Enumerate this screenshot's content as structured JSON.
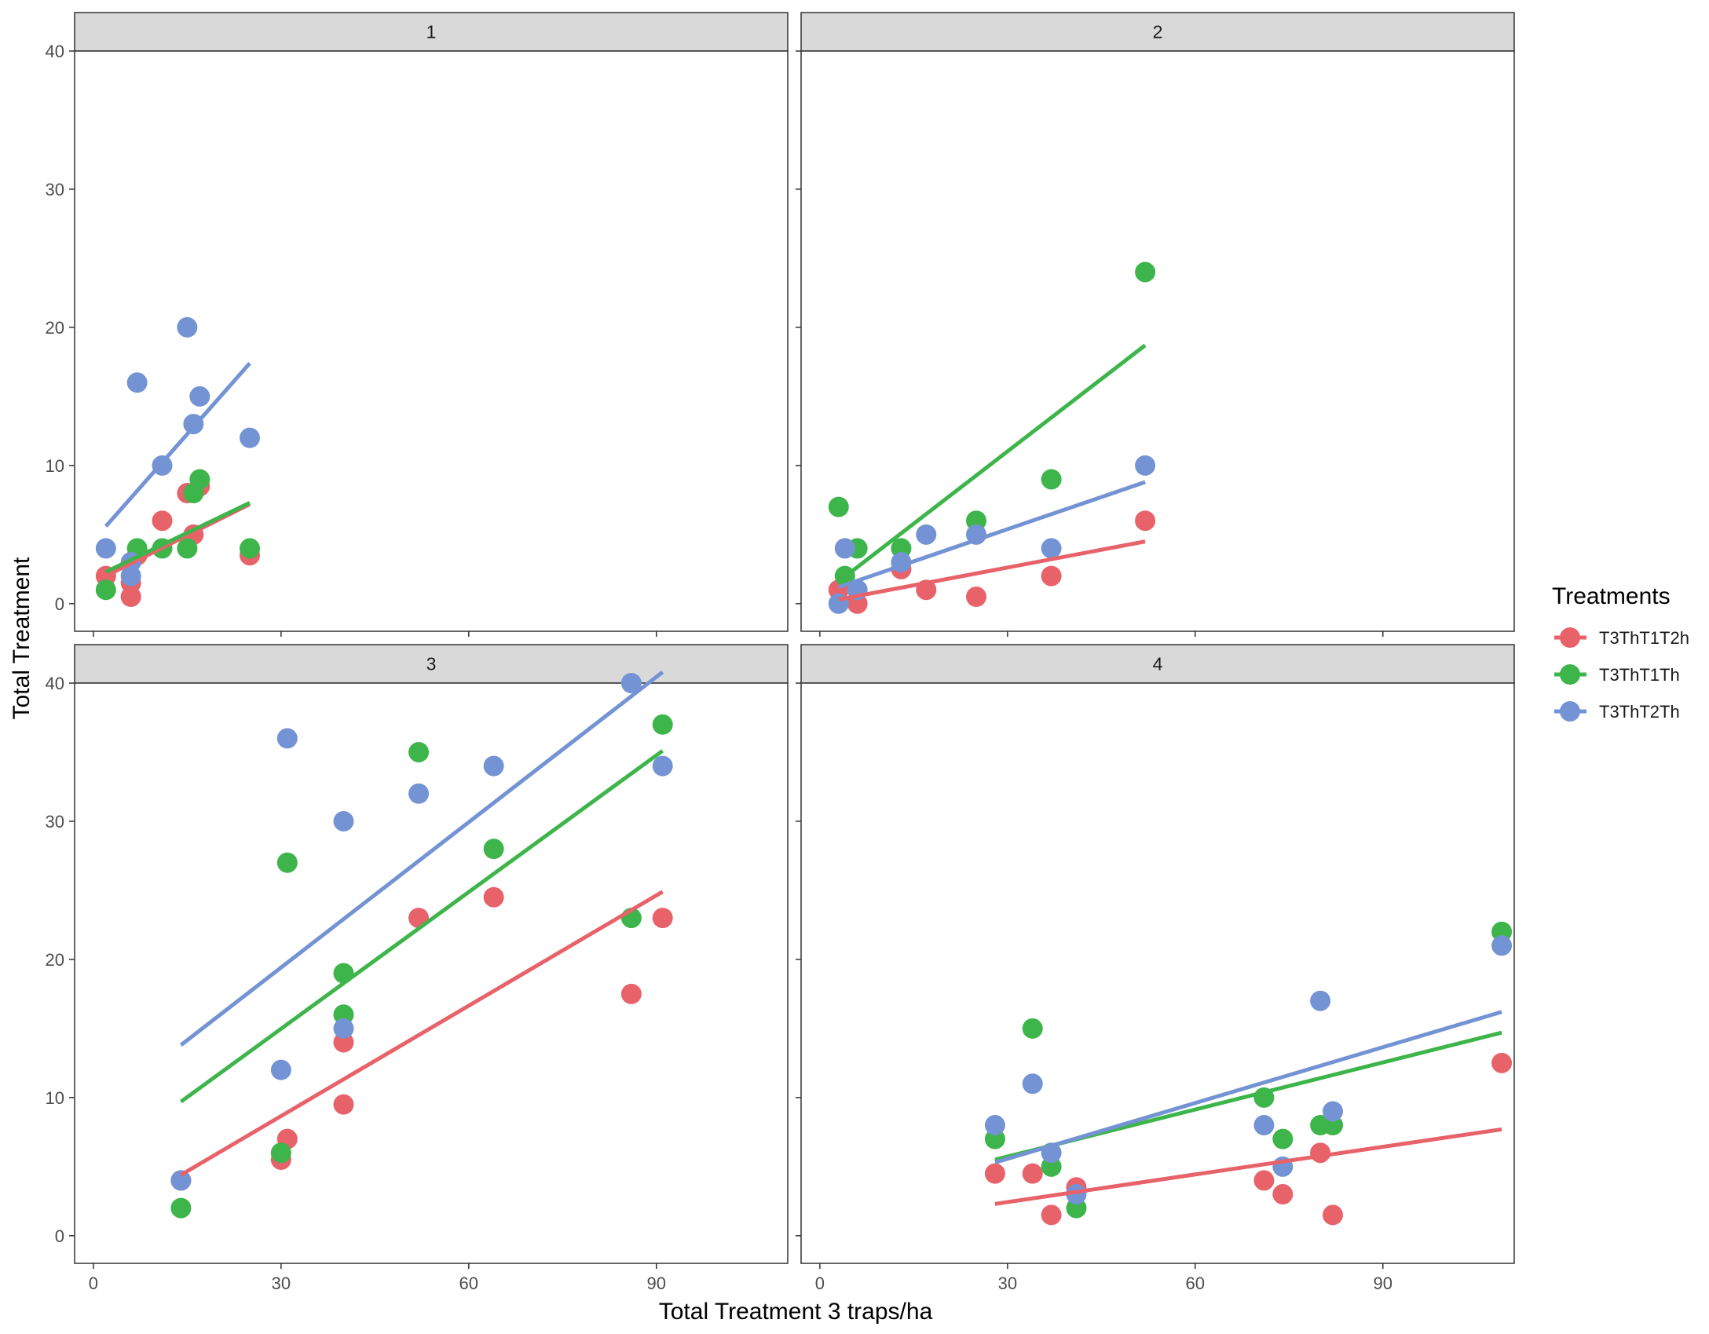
{
  "chart_data": {
    "type": "scatter",
    "xlabel": "Total Treatment 3 traps/ha",
    "ylabel": "Total Treatment",
    "xlim": [
      -3,
      111
    ],
    "ylim": [
      -2,
      40
    ],
    "x_ticks": [
      0,
      30,
      60,
      90
    ],
    "y_ticks": [
      0,
      10,
      20,
      30,
      40
    ],
    "grid": false,
    "legend": {
      "title": "Treatments",
      "position": "right",
      "entries": [
        "T3ThT1T2h",
        "T3ThT1Th",
        "T3ThT2Th"
      ]
    },
    "series_colors": {
      "T3ThT1T2h": "#E8626A",
      "T3ThT1Th": "#3DB54A",
      "T3ThT2Th": "#7493D4"
    },
    "strip_color": "#D9D9D9",
    "panels": [
      {
        "label": "1",
        "series": [
          {
            "name": "T3ThT1T2h",
            "x": [
              2,
              6,
              6,
              7,
              11,
              15,
              16,
              17,
              25
            ],
            "y": [
              2,
              0.5,
              1.5,
              3.5,
              6,
              8,
              5,
              8.5,
              3.5
            ],
            "fit": [
              [
                2,
                2.0
              ],
              [
                25,
                7.2
              ]
            ]
          },
          {
            "name": "T3ThT1Th",
            "x": [
              2,
              7,
              11,
              15,
              16,
              17,
              25
            ],
            "y": [
              1,
              4,
              4,
              4,
              8,
              9,
              4
            ],
            "fit": [
              [
                2,
                2.3
              ],
              [
                25,
                7.3
              ]
            ]
          },
          {
            "name": "T3ThT2Th",
            "x": [
              2,
              6,
              6,
              7,
              11,
              15,
              16,
              17,
              25
            ],
            "y": [
              4,
              3,
              2,
              16,
              10,
              20,
              13,
              15,
              12
            ],
            "fit": [
              [
                2,
                5.6
              ],
              [
                25,
                17.4
              ]
            ]
          }
        ]
      },
      {
        "label": "2",
        "series": [
          {
            "name": "T3ThT1T2h",
            "x": [
              3,
              6,
              13,
              17,
              25,
              37,
              52
            ],
            "y": [
              1,
              0,
              2.5,
              1,
              0.5,
              2,
              6
            ],
            "fit": [
              [
                3,
                0.3
              ],
              [
                52,
                4.5
              ]
            ]
          },
          {
            "name": "T3ThT1Th",
            "x": [
              3,
              4,
              6,
              13,
              25,
              37,
              52
            ],
            "y": [
              7,
              2,
              4,
              4,
              6,
              9,
              24
            ],
            "fit": [
              [
                3,
                1.6
              ],
              [
                52,
                18.7
              ]
            ]
          },
          {
            "name": "T3ThT2Th",
            "x": [
              3,
              4,
              6,
              13,
              17,
              25,
              37,
              52
            ],
            "y": [
              0,
              4,
              1,
              3,
              5,
              5,
              4,
              10
            ],
            "fit": [
              [
                3,
                1.2
              ],
              [
                52,
                8.8
              ]
            ]
          }
        ]
      },
      {
        "label": "3",
        "series": [
          {
            "name": "T3ThT1T2h",
            "x": [
              14,
              30,
              31,
              40,
              40,
              52,
              64,
              86,
              91
            ],
            "y": [
              4,
              5.5,
              7,
              14,
              9.5,
              23,
              24.5,
              17.5,
              23
            ],
            "fit": [
              [
                14,
                4.4
              ],
              [
                91,
                24.9
              ]
            ]
          },
          {
            "name": "T3ThT1Th",
            "x": [
              14,
              30,
              31,
              40,
              40,
              52,
              64,
              86,
              91
            ],
            "y": [
              2,
              6,
              27,
              19,
              16,
              35,
              28,
              23,
              37
            ],
            "fit": [
              [
                14,
                9.7
              ],
              [
                91,
                35.1
              ]
            ]
          },
          {
            "name": "T3ThT2Th",
            "x": [
              14,
              30,
              31,
              40,
              40,
              52,
              64,
              86,
              91
            ],
            "y": [
              4,
              12,
              36,
              30,
              15,
              32,
              34,
              40,
              34
            ],
            "fit": [
              [
                14,
                13.8
              ],
              [
                91,
                40.8
              ]
            ]
          }
        ]
      },
      {
        "label": "4",
        "series": [
          {
            "name": "T3ThT1T2h",
            "x": [
              28,
              34,
              37,
              41,
              71,
              74,
              80,
              82,
              109
            ],
            "y": [
              4.5,
              4.5,
              1.5,
              3.5,
              4,
              3,
              6,
              1.5,
              12.5
            ],
            "fit": [
              [
                28,
                2.3
              ],
              [
                109,
                7.7
              ]
            ]
          },
          {
            "name": "T3ThT1Th",
            "x": [
              28,
              34,
              37,
              41,
              71,
              74,
              80,
              82,
              109
            ],
            "y": [
              7,
              15,
              5,
              2,
              10,
              7,
              8,
              8,
              22
            ],
            "fit": [
              [
                28,
                5.5
              ],
              [
                109,
                14.7
              ]
            ]
          },
          {
            "name": "T3ThT2Th",
            "x": [
              28,
              34,
              37,
              41,
              71,
              74,
              80,
              82,
              109
            ],
            "y": [
              8,
              11,
              6,
              3,
              8,
              5,
              17,
              9,
              21
            ],
            "fit": [
              [
                28,
                5.3
              ],
              [
                109,
                16.2
              ]
            ]
          }
        ]
      }
    ]
  }
}
